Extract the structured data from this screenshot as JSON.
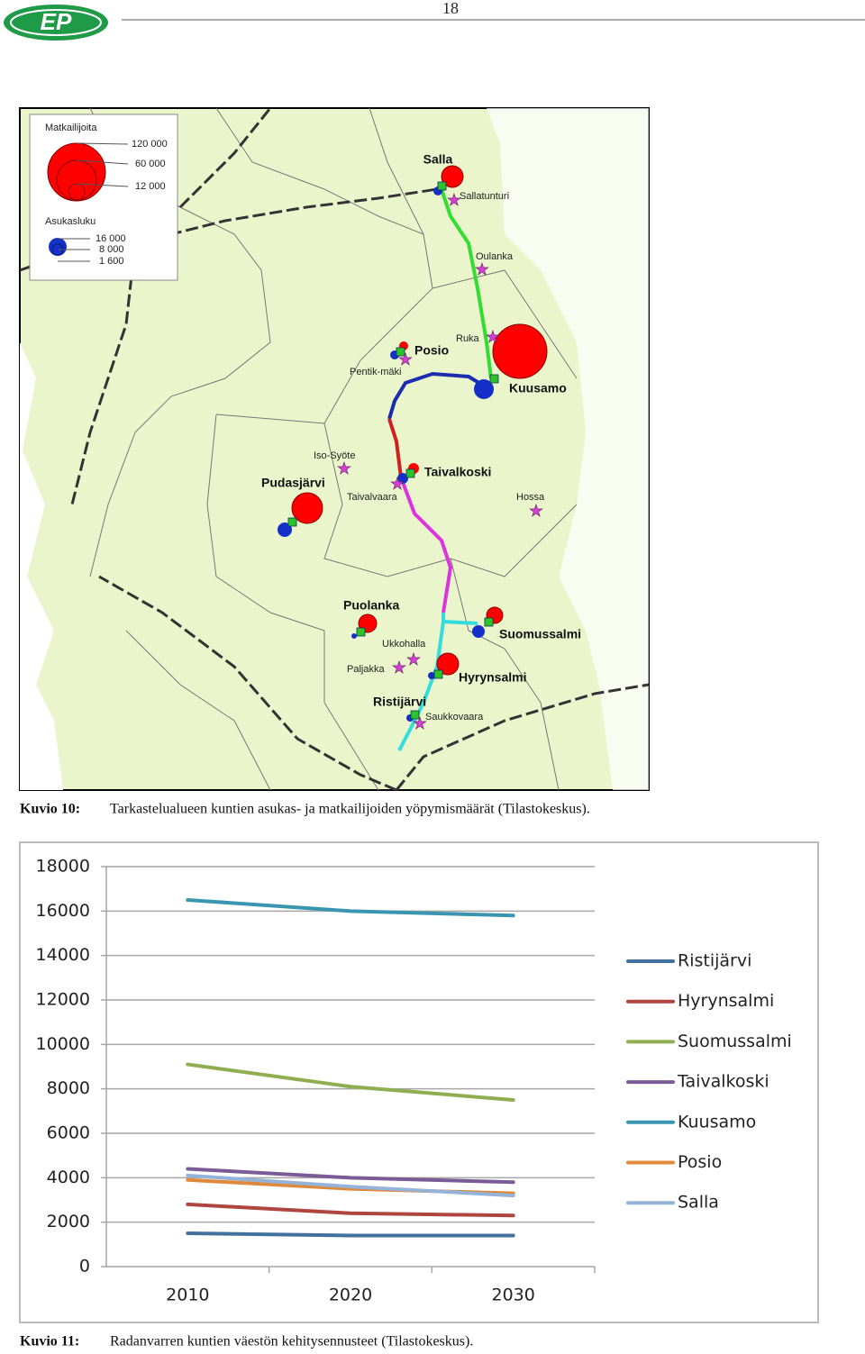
{
  "header": {
    "logo": "EP",
    "page_number": "18"
  },
  "map": {
    "legend": {
      "tourists_title": "Matkailijoita",
      "tourists_sizes": [
        "120 000",
        "60 000",
        "12 000"
      ],
      "population_title": "Asukasluku",
      "population_sizes": [
        "16 000",
        "8 000",
        "1 600"
      ]
    },
    "labels": [
      "Salla",
      "Sallatunturi",
      "Oulanka",
      "Ruka",
      "Posio",
      "Pentik-mäki",
      "Kuusamo",
      "Iso-Syöte",
      "Taivalkoski",
      "Pudasjärvi",
      "Taivalvaara",
      "Hossa",
      "Puolanka",
      "Suomussalmi",
      "Ukkohalla",
      "Paljakka",
      "Hyrynsalmi",
      "Ristijärvi",
      "Saukkovaara"
    ]
  },
  "captions": [
    {
      "label": "Kuvio 10:",
      "text": "Tarkastelualueen kuntien asukas- ja matkailijoiden yöpymismäärät (Tilastokeskus)."
    },
    {
      "label": "Kuvio 11:",
      "text": "Radanvarren kuntien väestön kehitysennusteet (Tilastokeskus)."
    }
  ],
  "chart_data": {
    "type": "line",
    "categories": [
      "2010",
      "2020",
      "2030"
    ],
    "series": [
      {
        "name": "Ristijärvi",
        "color": "#41719c",
        "values": [
          1500,
          1400,
          1400
        ]
      },
      {
        "name": "Hyrynsalmi",
        "color": "#b0443f",
        "values": [
          2800,
          2400,
          2300
        ]
      },
      {
        "name": "Suomussalmi",
        "color": "#8fae4f",
        "values": [
          9100,
          8100,
          7500
        ]
      },
      {
        "name": "Taivalkoski",
        "color": "#7a5b97",
        "values": [
          4400,
          4000,
          3800
        ]
      },
      {
        "name": "Kuusamo",
        "color": "#3a96b0",
        "values": [
          16500,
          16000,
          15800
        ]
      },
      {
        "name": "Posio",
        "color": "#e0893a",
        "values": [
          3900,
          3500,
          3300
        ]
      },
      {
        "name": "Salla",
        "color": "#95b3d9",
        "values": [
          4100,
          3600,
          3200
        ]
      }
    ],
    "ylim": [
      0,
      18000
    ],
    "yticks": [
      0,
      2000,
      4000,
      6000,
      8000,
      10000,
      12000,
      14000,
      16000,
      18000
    ],
    "grid": true,
    "legend": "right"
  }
}
